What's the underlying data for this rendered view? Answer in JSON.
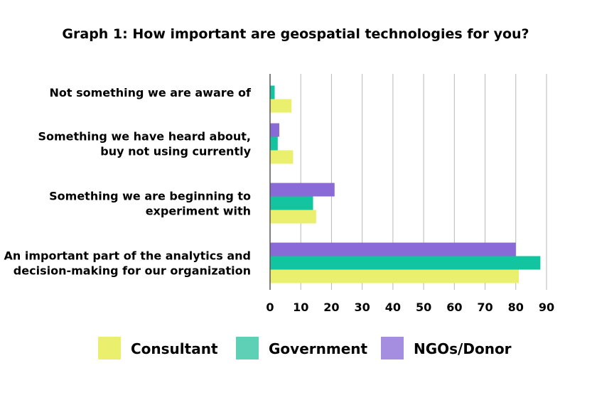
{
  "chart_data": {
    "type": "bar",
    "orientation": "horizontal",
    "title": "Graph 1: How important are geospatial technologies for you?",
    "categories": [
      [
        "Not something we are aware of"
      ],
      [
        "Something we have heard about,",
        "buy not using currently"
      ],
      [
        "Something we are beginning to",
        "experiment with"
      ],
      [
        "An important part of the analytics and",
        "decision-making for our organization"
      ]
    ],
    "series": [
      {
        "name": "NGOs/Donor",
        "color": "#8a6ad6",
        "legend_color": "#a58de0",
        "values": [
          null,
          3,
          21,
          80
        ]
      },
      {
        "name": "Government",
        "color": "#12c4a0",
        "legend_color": "#5ed0b6",
        "values": [
          1.5,
          2.5,
          14,
          88
        ]
      },
      {
        "name": "Consultant",
        "color": "#eaf06e",
        "legend_color": "#eaf06e",
        "values": [
          7,
          7.5,
          15,
          81
        ]
      }
    ],
    "legend_order": [
      "Consultant",
      "Government",
      "NGOs/Donor"
    ],
    "xlim": [
      0,
      90
    ],
    "xticks": [
      0,
      10,
      20,
      30,
      40,
      50,
      60,
      70,
      80,
      90
    ],
    "xlabel": "",
    "ylabel": "",
    "grid": "vertical",
    "legend_position": "bottom"
  }
}
